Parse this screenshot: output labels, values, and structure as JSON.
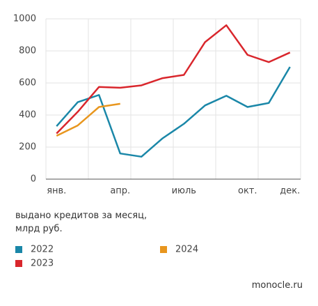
{
  "chart_data": {
    "type": "line",
    "categories": [
      "янв.",
      null,
      null,
      "апр.",
      null,
      null,
      "июль",
      null,
      null,
      "окт.",
      null,
      "дек."
    ],
    "series": [
      {
        "name": "2022",
        "color": "#1a87a8",
        "values": [
          330,
          480,
          525,
          160,
          140,
          255,
          345,
          460,
          520,
          450,
          475,
          700
        ]
      },
      {
        "name": "2023",
        "color": "#d9262c",
        "values": [
          285,
          420,
          575,
          570,
          585,
          630,
          650,
          855,
          960,
          775,
          730,
          790
        ]
      },
      {
        "name": "2024",
        "color": "#e8961e",
        "values": [
          270,
          335,
          450,
          470,
          null,
          null,
          null,
          null,
          null,
          null,
          null,
          null
        ]
      }
    ],
    "ylim": [
      0,
      1000
    ],
    "yticks": [
      0,
      200,
      400,
      600,
      800,
      1000
    ],
    "grid": true,
    "y_label": "выдано кредитов за месяц,\nмлрд руб.",
    "source": "monocle.ru"
  }
}
